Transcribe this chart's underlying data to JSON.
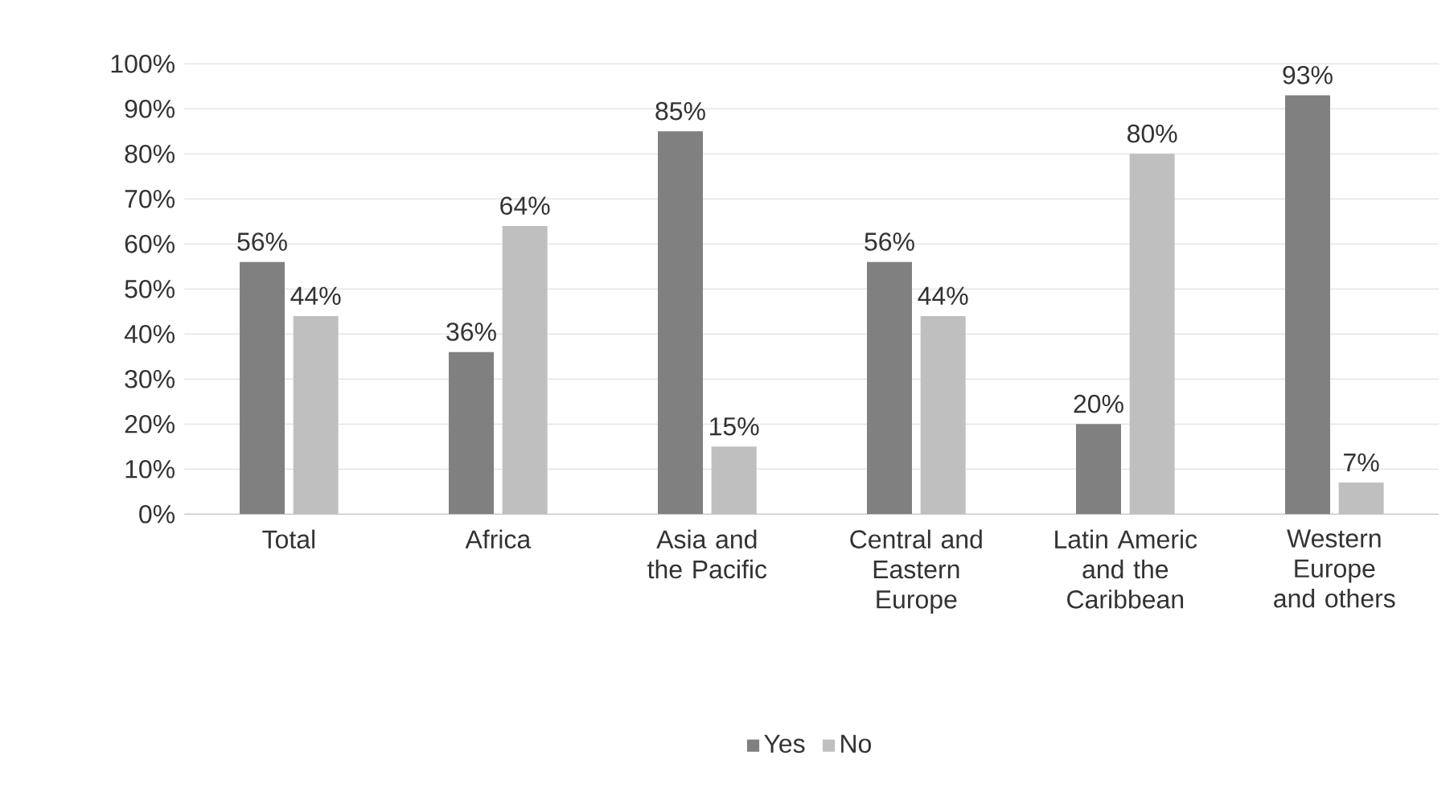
{
  "chart_data": {
    "type": "bar",
    "categories": [
      "Total",
      "Africa",
      "Asia and the Pacific",
      "Central and Eastern Europe",
      "Latin Americ and the Caribbean",
      "Western Europe and others"
    ],
    "series": [
      {
        "name": "Yes",
        "color": "#808080",
        "values": [
          56,
          36,
          85,
          56,
          20,
          93
        ],
        "value_labels": [
          "56%",
          "36%",
          "85%",
          "56%",
          "20%",
          "93%"
        ]
      },
      {
        "name": "No",
        "color": "#bfbfbf",
        "values": [
          44,
          64,
          15,
          44,
          80,
          7
        ],
        "value_labels": [
          "44%",
          "64%",
          "15%",
          "44%",
          "80%",
          "7%"
        ]
      }
    ],
    "ylim": [
      0,
      100
    ],
    "yticks": [
      {
        "value": 0,
        "label": "0%"
      },
      {
        "value": 10,
        "label": "10%"
      },
      {
        "value": 20,
        "label": "20%"
      },
      {
        "value": 30,
        "label": "30%"
      },
      {
        "value": 40,
        "label": "40%"
      },
      {
        "value": 50,
        "label": "50%"
      },
      {
        "value": 60,
        "label": "60%"
      },
      {
        "value": 70,
        "label": "70%"
      },
      {
        "value": 80,
        "label": "80%"
      },
      {
        "value": 90,
        "label": "90%"
      },
      {
        "value": 100,
        "label": "100%"
      }
    ],
    "grid": "y",
    "legend": "bottom"
  }
}
